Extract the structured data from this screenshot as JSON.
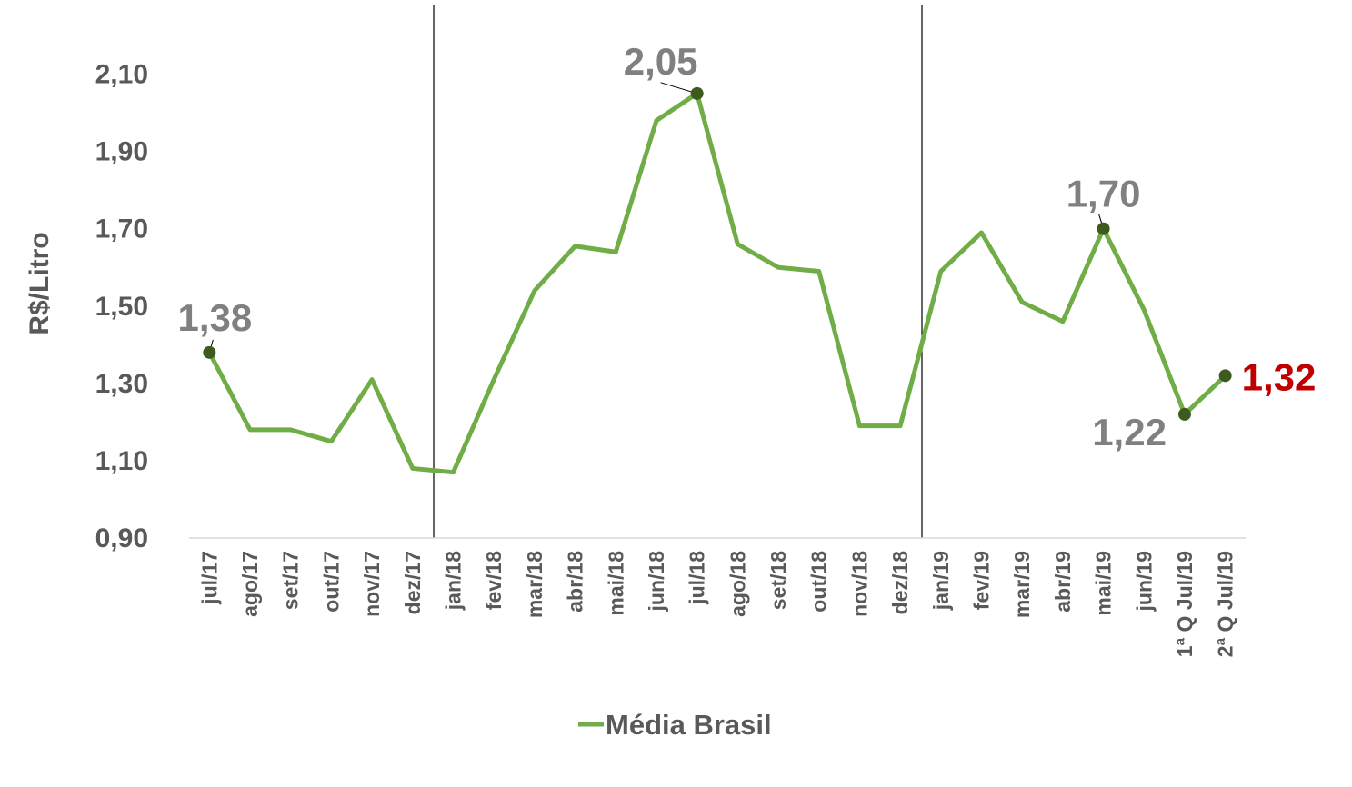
{
  "chart_data": {
    "type": "line",
    "y_label": "R$/Litro",
    "categories": [
      "jul/17",
      "ago/17",
      "set/17",
      "out/17",
      "nov/17",
      "dez/17",
      "jan/18",
      "fev/18",
      "mar/18",
      "abr/18",
      "mai/18",
      "jun/18",
      "jul/18",
      "ago/18",
      "set/18",
      "out/18",
      "nov/18",
      "dez/18",
      "jan/19",
      "fev/19",
      "mar/19",
      "abr/19",
      "mai/19",
      "jun/19",
      "1ª Q Jul/19",
      "2ª Q Jul/19"
    ],
    "series": [
      {
        "name": "Média Brasil",
        "color": "#70ad47",
        "marker_color": "#3d5a1f",
        "values": [
          1.38,
          1.18,
          1.18,
          1.15,
          1.31,
          1.08,
          1.07,
          1.31,
          1.54,
          1.655,
          1.64,
          1.98,
          2.05,
          1.66,
          1.6,
          1.59,
          1.19,
          1.19,
          1.59,
          1.69,
          1.51,
          1.46,
          1.7,
          1.49,
          1.22,
          1.32
        ],
        "value_labels": [
          "1,38",
          null,
          null,
          null,
          null,
          null,
          null,
          null,
          null,
          null,
          null,
          null,
          "2,05",
          null,
          null,
          null,
          null,
          null,
          null,
          null,
          null,
          null,
          "1,70",
          null,
          "1,22",
          "1,32"
        ]
      }
    ],
    "ylim": [
      0.9,
      2.28
    ],
    "yticks": [
      {
        "value": 0.9,
        "label": "0,90"
      },
      {
        "value": 1.1,
        "label": "1,10"
      },
      {
        "value": 1.3,
        "label": "1,30"
      },
      {
        "value": 1.5,
        "label": "1,50"
      },
      {
        "value": 1.7,
        "label": "1,70"
      },
      {
        "value": 1.9,
        "label": "1,90"
      },
      {
        "value": 2.1,
        "label": "2,10"
      }
    ],
    "grid": false,
    "legend": "bottom"
  }
}
